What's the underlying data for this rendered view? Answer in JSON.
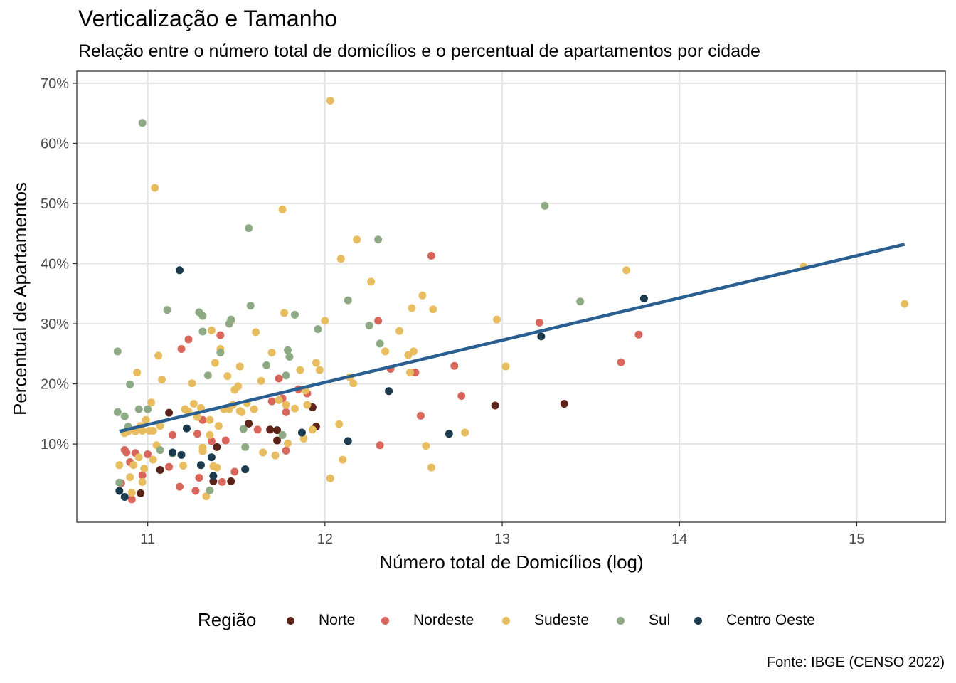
{
  "title": "Verticalização e Tamanho",
  "subtitle": "Relação entre o número total de domicílios e o percentual de apartamentos por cidade",
  "caption": "Fonte: IBGE (CENSO 2022)",
  "legend_title": "Região",
  "colors": {
    "Norte": "#5c2318",
    "Nordeste": "#d9665a",
    "Sudeste": "#e8bd5f",
    "Sul": "#8daa85",
    "Centro Oeste": "#1b3a4e",
    "trend": "#2a5f91",
    "grid": "#e5e5e5"
  },
  "chart_data": {
    "type": "scatter",
    "xlabel": "Número total de Domicílios (log)",
    "ylabel": "Percentual de Apartamentos",
    "xlim": [
      10.6,
      15.5
    ],
    "ylim": [
      -0.03,
      0.72
    ],
    "x_ticks": [
      11,
      12,
      13,
      14,
      15
    ],
    "x_tick_labels": [
      "11",
      "12",
      "13",
      "14",
      "15"
    ],
    "y_ticks": [
      0.1,
      0.2,
      0.3,
      0.4,
      0.5,
      0.6,
      0.7
    ],
    "y_tick_labels": [
      "10%",
      "20%",
      "30%",
      "40%",
      "50%",
      "60%",
      "70%"
    ],
    "grid": true,
    "legend_position": "bottom",
    "trend_line": {
      "x": [
        10.84,
        15.27
      ],
      "y": [
        0.121,
        0.432
      ]
    },
    "series": [
      {
        "name": "Norte",
        "points": [
          [
            10.96,
            0.018
          ],
          [
            11.07,
            0.057
          ],
          [
            11.12,
            0.152
          ],
          [
            11.37,
            0.038
          ],
          [
            11.39,
            0.095
          ],
          [
            11.47,
            0.038
          ],
          [
            11.57,
            0.134
          ],
          [
            11.69,
            0.124
          ],
          [
            11.73,
            0.123
          ],
          [
            11.73,
            0.106
          ],
          [
            11.93,
            0.161
          ],
          [
            11.95,
            0.129
          ],
          [
            12.96,
            0.164
          ],
          [
            13.35,
            0.167
          ]
        ]
      },
      {
        "name": "Nordeste",
        "points": [
          [
            10.85,
            0.035
          ],
          [
            10.87,
            0.09
          ],
          [
            10.88,
            0.086
          ],
          [
            10.9,
            0.07
          ],
          [
            10.91,
            0.008
          ],
          [
            10.93,
            0.085
          ],
          [
            10.97,
            0.048
          ],
          [
            11.0,
            0.083
          ],
          [
            11.12,
            0.062
          ],
          [
            11.14,
            0.115
          ],
          [
            11.18,
            0.029
          ],
          [
            11.19,
            0.258
          ],
          [
            11.23,
            0.274
          ],
          [
            11.27,
            0.022
          ],
          [
            11.28,
            0.117
          ],
          [
            11.29,
            0.044
          ],
          [
            11.31,
            0.14
          ],
          [
            11.36,
            0.105
          ],
          [
            11.41,
            0.281
          ],
          [
            11.42,
            0.037
          ],
          [
            11.44,
            0.106
          ],
          [
            11.49,
            0.054
          ],
          [
            11.62,
            0.124
          ],
          [
            11.7,
            0.171
          ],
          [
            11.74,
            0.209
          ],
          [
            11.76,
            0.176
          ],
          [
            11.78,
            0.153
          ],
          [
            11.78,
            0.089
          ],
          [
            11.85,
            0.191
          ],
          [
            11.9,
            0.184
          ],
          [
            12.3,
            0.305
          ],
          [
            12.31,
            0.098
          ],
          [
            12.37,
            0.225
          ],
          [
            12.51,
            0.219
          ],
          [
            12.54,
            0.147
          ],
          [
            12.6,
            0.413
          ],
          [
            12.73,
            0.23
          ],
          [
            12.77,
            0.18
          ],
          [
            13.21,
            0.302
          ],
          [
            13.67,
            0.236
          ],
          [
            13.77,
            0.282
          ]
        ]
      },
      {
        "name": "Sudeste",
        "points": [
          [
            10.84,
            0.065
          ],
          [
            10.87,
            0.118
          ],
          [
            10.89,
            0.121
          ],
          [
            10.9,
            0.045
          ],
          [
            10.91,
            0.019
          ],
          [
            10.92,
            0.065
          ],
          [
            10.93,
            0.121
          ],
          [
            10.94,
            0.219
          ],
          [
            10.95,
            0.078
          ],
          [
            10.96,
            0.13
          ],
          [
            10.97,
            0.122
          ],
          [
            10.97,
            0.037
          ],
          [
            10.98,
            0.059
          ],
          [
            10.99,
            0.14
          ],
          [
            11.01,
            0.122
          ],
          [
            11.02,
            0.169
          ],
          [
            11.03,
            0.122
          ],
          [
            11.03,
            0.074
          ],
          [
            11.04,
            0.526
          ],
          [
            11.05,
            0.098
          ],
          [
            11.06,
            0.247
          ],
          [
            11.07,
            0.13
          ],
          [
            11.08,
            0.207
          ],
          [
            11.2,
            0.064
          ],
          [
            11.21,
            0.158
          ],
          [
            11.23,
            0.154
          ],
          [
            11.25,
            0.201
          ],
          [
            11.26,
            0.167
          ],
          [
            11.28,
            0.145
          ],
          [
            11.3,
            0.16
          ],
          [
            11.31,
            0.088
          ],
          [
            11.31,
            0.094
          ],
          [
            11.33,
            0.013
          ],
          [
            11.35,
            0.115
          ],
          [
            11.35,
            0.14
          ],
          [
            11.36,
            0.289
          ],
          [
            11.37,
            0.063
          ],
          [
            11.38,
            0.235
          ],
          [
            11.39,
            0.061
          ],
          [
            11.4,
            0.13
          ],
          [
            11.41,
            0.258
          ],
          [
            11.43,
            0.158
          ],
          [
            11.45,
            0.213
          ],
          [
            11.46,
            0.158
          ],
          [
            11.47,
            0.305
          ],
          [
            11.48,
            0.165
          ],
          [
            11.49,
            0.19
          ],
          [
            11.51,
            0.196
          ],
          [
            11.52,
            0.155
          ],
          [
            11.52,
            0.229
          ],
          [
            11.53,
            0.153
          ],
          [
            11.56,
            0.168
          ],
          [
            11.6,
            0.158
          ],
          [
            11.61,
            0.286
          ],
          [
            11.64,
            0.205
          ],
          [
            11.65,
            0.086
          ],
          [
            11.7,
            0.252
          ],
          [
            11.72,
            0.081
          ],
          [
            11.74,
            0.173
          ],
          [
            11.76,
            0.49
          ],
          [
            11.77,
            0.318
          ],
          [
            11.78,
            0.165
          ],
          [
            11.79,
            0.101
          ],
          [
            11.83,
            0.159
          ],
          [
            11.86,
            0.223
          ],
          [
            11.88,
            0.109
          ],
          [
            11.89,
            0.189
          ],
          [
            11.9,
            0.165
          ],
          [
            11.93,
            0.124
          ],
          [
            11.95,
            0.235
          ],
          [
            11.97,
            0.223
          ],
          [
            12.0,
            0.305
          ],
          [
            12.03,
            0.671
          ],
          [
            12.03,
            0.043
          ],
          [
            12.08,
            0.133
          ],
          [
            12.09,
            0.408
          ],
          [
            12.1,
            0.074
          ],
          [
            12.14,
            0.211
          ],
          [
            12.16,
            0.201
          ],
          [
            12.18,
            0.44
          ],
          [
            12.26,
            0.37
          ],
          [
            12.34,
            0.254
          ],
          [
            12.42,
            0.288
          ],
          [
            12.47,
            0.248
          ],
          [
            12.48,
            0.219
          ],
          [
            12.49,
            0.326
          ],
          [
            12.5,
            0.254
          ],
          [
            12.55,
            0.347
          ],
          [
            12.57,
            0.097
          ],
          [
            12.6,
            0.061
          ],
          [
            12.61,
            0.324
          ],
          [
            12.79,
            0.119
          ],
          [
            12.97,
            0.307
          ],
          [
            13.02,
            0.229
          ],
          [
            13.7,
            0.389
          ],
          [
            14.7,
            0.395
          ],
          [
            15.27,
            0.333
          ]
        ]
      },
      {
        "name": "Sul",
        "points": [
          [
            10.83,
            0.153
          ],
          [
            10.83,
            0.254
          ],
          [
            10.84,
            0.036
          ],
          [
            10.87,
            0.146
          ],
          [
            10.89,
            0.129
          ],
          [
            10.9,
            0.199
          ],
          [
            10.95,
            0.158
          ],
          [
            10.97,
            0.634
          ],
          [
            11.0,
            0.158
          ],
          [
            11.07,
            0.09
          ],
          [
            11.11,
            0.323
          ],
          [
            11.14,
            0.084
          ],
          [
            11.29,
            0.319
          ],
          [
            11.31,
            0.313
          ],
          [
            11.31,
            0.287
          ],
          [
            11.34,
            0.214
          ],
          [
            11.35,
            0.023
          ],
          [
            11.41,
            0.252
          ],
          [
            11.46,
            0.3
          ],
          [
            11.47,
            0.307
          ],
          [
            11.54,
            0.125
          ],
          [
            11.55,
            0.095
          ],
          [
            11.57,
            0.459
          ],
          [
            11.58,
            0.33
          ],
          [
            11.67,
            0.231
          ],
          [
            11.76,
            0.115
          ],
          [
            11.78,
            0.214
          ],
          [
            11.79,
            0.256
          ],
          [
            11.8,
            0.245
          ],
          [
            11.83,
            0.315
          ],
          [
            11.96,
            0.291
          ],
          [
            12.13,
            0.339
          ],
          [
            12.25,
            0.297
          ],
          [
            12.3,
            0.44
          ],
          [
            12.31,
            0.267
          ],
          [
            13.24,
            0.496
          ],
          [
            13.44,
            0.337
          ]
        ]
      },
      {
        "name": "Centro Oeste",
        "points": [
          [
            10.84,
            0.022
          ],
          [
            10.87,
            0.012
          ],
          [
            11.14,
            0.086
          ],
          [
            11.18,
            0.389
          ],
          [
            11.19,
            0.082
          ],
          [
            11.22,
            0.126
          ],
          [
            11.3,
            0.065
          ],
          [
            11.36,
            0.078
          ],
          [
            11.37,
            0.047
          ],
          [
            11.55,
            0.058
          ],
          [
            11.87,
            0.119
          ],
          [
            12.13,
            0.105
          ],
          [
            12.36,
            0.188
          ],
          [
            12.7,
            0.117
          ],
          [
            13.22,
            0.279
          ],
          [
            13.8,
            0.342
          ]
        ]
      }
    ]
  }
}
